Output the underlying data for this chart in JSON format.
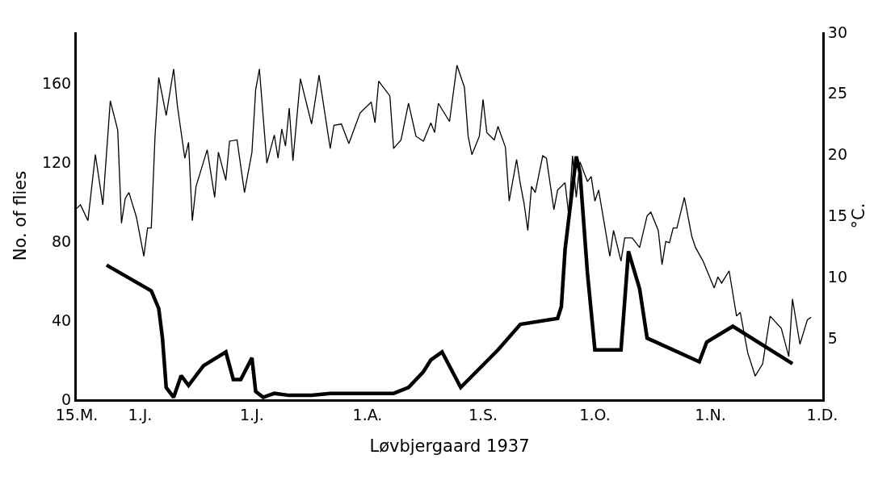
{
  "chart_data": {
    "type": "line",
    "xlabel": "Løvbjergaard 1937",
    "ylabel": "No. of flies",
    "y2label": "°C.",
    "xlim": [
      "1937-05-15",
      "1937-12-01"
    ],
    "xticks": [
      {
        "value": "1937-05-15",
        "label": "15.M."
      },
      {
        "value": "1937-06-01",
        "label": "1.J."
      },
      {
        "value": "1937-07-01",
        "label": "1.J."
      },
      {
        "value": "1937-08-01",
        "label": "1.A."
      },
      {
        "value": "1937-09-01",
        "label": "1.S."
      },
      {
        "value": "1937-10-01",
        "label": "1.O."
      },
      {
        "value": "1937-11-01",
        "label": "1.N."
      },
      {
        "value": "1937-12-01",
        "label": "1.D."
      }
    ],
    "ylim": [
      0,
      186
    ],
    "yticks": [
      0,
      40,
      80,
      120,
      160
    ],
    "y2lim": [
      0,
      30
    ],
    "y2ticks": [
      5,
      10,
      15,
      20,
      25,
      30
    ],
    "marker": "none",
    "line_style": "solid",
    "series": [
      {
        "color": "#000000",
        "x": [
          "1937-05-23",
          "1937-06-04",
          "1937-06-06",
          "1937-06-07",
          "1937-06-08",
          "1937-06-10",
          "1937-06-12",
          "1937-06-14",
          "1937-06-18",
          "1937-06-24",
          "1937-06-26",
          "1937-06-28",
          "1937-07-01",
          "1937-07-02",
          "1937-07-04",
          "1937-07-07",
          "1937-07-11",
          "1937-07-17",
          "1937-07-22",
          "1937-07-27",
          "1937-08-01",
          "1937-08-08",
          "1937-08-12",
          "1937-08-16",
          "1937-08-18",
          "1937-08-21",
          "1937-08-26",
          "1937-09-05",
          "1937-09-11",
          "1937-09-21",
          "1937-09-22",
          "1937-09-23",
          "1937-09-26",
          "1937-09-27",
          "1937-09-29",
          "1937-10-01",
          "1937-10-08",
          "1937-10-10",
          "1937-10-13",
          "1937-10-15",
          "1937-10-29",
          "1937-10-31",
          "1937-11-07",
          "1937-11-23"
        ],
        "values": [
          68,
          55,
          46,
          31,
          6,
          1,
          12,
          7,
          17,
          24,
          10,
          10,
          21,
          4,
          1,
          3,
          2,
          2,
          3,
          3,
          3,
          3,
          6,
          14,
          20,
          24,
          6,
          25,
          38,
          41,
          47,
          76,
          123,
          115,
          64,
          25,
          25,
          75,
          56,
          31,
          19,
          29,
          37,
          18
        ]
      },
      {
        "color": "#000000",
        "axis": "y2",
        "x": [
          "1937-05-15",
          "1937-05-16",
          "1937-05-18",
          "1937-05-20",
          "1937-05-22",
          "1937-05-24",
          "1937-05-26",
          "1937-05-27",
          "1937-05-28",
          "1937-05-29",
          "1937-05-31",
          "1937-06-02",
          "1937-06-03",
          "1937-06-04",
          "1937-06-05",
          "1937-06-06",
          "1937-06-08",
          "1937-06-10",
          "1937-06-11",
          "1937-06-13",
          "1937-06-14",
          "1937-06-15",
          "1937-06-16",
          "1937-06-19",
          "1937-06-21",
          "1937-06-22",
          "1937-06-24",
          "1937-06-25",
          "1937-06-27",
          "1937-06-29",
          "1937-07-01",
          "1937-07-02",
          "1937-07-03",
          "1937-07-05",
          "1937-07-07",
          "1937-07-08",
          "1937-07-09",
          "1937-07-10",
          "1937-07-11",
          "1937-07-12",
          "1937-07-14",
          "1937-07-17",
          "1937-07-19",
          "1937-07-22",
          "1937-07-23",
          "1937-07-25",
          "1937-07-27",
          "1937-07-30",
          "1937-08-02",
          "1937-08-03",
          "1937-08-04",
          "1937-08-07",
          "1937-08-08",
          "1937-08-10",
          "1937-08-12",
          "1937-08-14",
          "1937-08-16",
          "1937-08-18",
          "1937-08-19",
          "1937-08-20",
          "1937-08-23",
          "1937-08-25",
          "1937-08-27",
          "1937-08-28",
          "1937-08-29",
          "1937-08-31",
          "1937-09-01",
          "1937-09-02",
          "1937-09-04",
          "1937-09-05",
          "1937-09-07",
          "1937-09-08",
          "1937-09-10",
          "1937-09-11",
          "1937-09-12",
          "1937-09-13",
          "1937-09-14",
          "1937-09-15",
          "1937-09-17",
          "1937-09-18",
          "1937-09-20",
          "1937-09-21",
          "1937-09-23",
          "1937-09-24",
          "1937-09-25",
          "1937-09-26",
          "1937-09-27",
          "1937-09-29",
          "1937-09-30",
          "1937-10-01",
          "1937-10-02",
          "1937-10-05",
          "1937-10-06",
          "1937-10-08",
          "1937-10-09",
          "1937-10-11",
          "1937-10-13",
          "1937-10-15",
          "1937-10-16",
          "1937-10-18",
          "1937-10-19",
          "1937-10-20",
          "1937-10-21",
          "1937-10-22",
          "1937-10-23",
          "1937-10-25",
          "1937-10-27",
          "1937-10-28",
          "1937-10-30",
          "1937-11-02",
          "1937-11-03",
          "1937-11-04",
          "1937-11-06",
          "1937-11-08",
          "1937-11-09",
          "1937-11-11",
          "1937-11-13",
          "1937-11-15",
          "1937-11-17",
          "1937-11-20",
          "1937-11-22",
          "1937-11-23",
          "1937-11-25",
          "1937-11-27",
          "1937-11-28"
        ],
        "values": [
          15.6,
          15.9,
          14.6,
          20.0,
          15.9,
          24.4,
          22.0,
          14.4,
          16.4,
          16.9,
          14.9,
          11.7,
          14.0,
          14.0,
          21.5,
          26.3,
          23.2,
          27.0,
          24.0,
          19.7,
          21.0,
          14.6,
          17.4,
          20.4,
          16.5,
          20.2,
          17.9,
          21.1,
          21.2,
          16.9,
          20.2,
          25.3,
          27.0,
          19.3,
          21.6,
          19.7,
          22.1,
          20.7,
          23.8,
          19.5,
          26.2,
          22.5,
          26.5,
          20.5,
          22.4,
          22.5,
          20.9,
          23.4,
          24.3,
          22.6,
          26.0,
          24.8,
          20.5,
          21.2,
          24.2,
          21.5,
          21.1,
          22.6,
          21.8,
          24.2,
          22.7,
          27.3,
          25.5,
          21.5,
          20.0,
          21.5,
          24.5,
          21.8,
          21.2,
          22.3,
          20.6,
          16.2,
          19.6,
          17.6,
          16.0,
          13.8,
          17.4,
          16.9,
          19.9,
          19.7,
          15.5,
          17.1,
          17.7,
          15.0,
          19.9,
          16.5,
          19.4,
          17.8,
          18.2,
          16.2,
          17.1,
          11.7,
          13.8,
          11.3,
          13.2,
          13.2,
          12.4,
          15.0,
          15.3,
          13.8,
          11.0,
          12.9,
          12.8,
          14.0,
          14.0,
          16.5,
          13.3,
          12.4,
          11.3,
          9.1,
          10.0,
          9.5,
          10.5,
          6.8,
          7.1,
          3.8,
          1.9,
          2.9,
          6.8,
          5.8,
          3.5,
          8.2,
          4.5,
          6.5,
          6.7
        ]
      }
    ]
  }
}
